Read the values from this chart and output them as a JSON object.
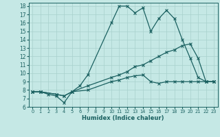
{
  "xlabel": "Humidex (Indice chaleur)",
  "bg_color": "#c5e8e5",
  "grid_color": "#a8d0cc",
  "line_color": "#1a6060",
  "xlim": [
    -0.5,
    23.5
  ],
  "ylim": [
    6,
    18.4
  ],
  "xticks": [
    0,
    1,
    2,
    3,
    4,
    5,
    6,
    7,
    8,
    9,
    10,
    11,
    12,
    13,
    14,
    15,
    16,
    17,
    18,
    19,
    20,
    21,
    22,
    23
  ],
  "yticks": [
    6,
    7,
    8,
    9,
    10,
    11,
    12,
    13,
    14,
    15,
    16,
    17,
    18
  ],
  "line1_x": [
    0,
    1,
    2,
    3,
    4,
    5,
    6,
    7,
    10,
    11,
    12,
    13,
    14,
    15,
    16,
    17,
    18,
    19,
    20,
    21,
    22,
    23
  ],
  "line1_y": [
    7.8,
    7.8,
    7.5,
    7.3,
    6.5,
    7.8,
    8.5,
    9.8,
    16.0,
    18.0,
    18.0,
    17.2,
    17.8,
    15.0,
    16.5,
    17.5,
    16.5,
    14.0,
    11.8,
    9.5,
    9.0,
    9.0
  ],
  "line2_x": [
    0,
    1,
    3,
    4,
    5,
    7,
    10,
    11,
    12,
    13,
    14,
    15,
    16,
    17,
    18,
    19,
    20,
    21,
    22,
    23
  ],
  "line2_y": [
    7.8,
    7.8,
    7.5,
    7.3,
    7.8,
    8.5,
    9.5,
    9.8,
    10.2,
    10.8,
    11.0,
    11.5,
    12.0,
    12.5,
    12.8,
    13.3,
    13.5,
    11.8,
    9.0,
    9.0
  ],
  "line3_x": [
    0,
    1,
    3,
    4,
    5,
    7,
    10,
    11,
    12,
    13,
    14,
    15,
    16,
    17,
    18,
    19,
    20,
    21,
    22,
    23
  ],
  "line3_y": [
    7.8,
    7.8,
    7.5,
    7.3,
    7.8,
    8.0,
    9.0,
    9.2,
    9.5,
    9.7,
    9.8,
    9.0,
    8.8,
    9.0,
    9.0,
    9.0,
    9.0,
    9.0,
    9.0,
    9.0
  ]
}
